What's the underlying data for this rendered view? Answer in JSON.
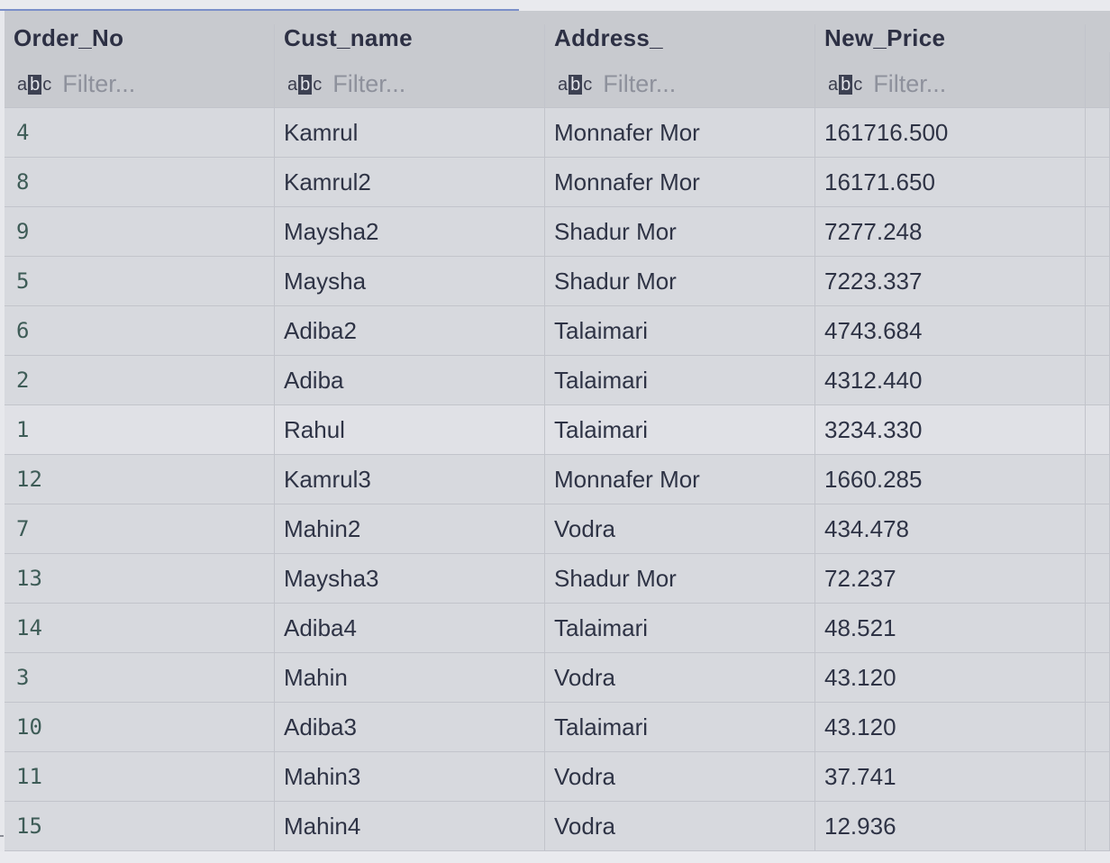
{
  "columns": [
    {
      "header": "Order_No",
      "filter_placeholder": "Filter..."
    },
    {
      "header": "Cust_name",
      "filter_placeholder": "Filter..."
    },
    {
      "header": "Address_",
      "filter_placeholder": "Filter..."
    },
    {
      "header": "New_Price",
      "filter_placeholder": "Filter..."
    }
  ],
  "filter_icon": "text-type-abc-icon",
  "selected_row_index": 6,
  "rows": [
    {
      "order_no": "4",
      "cust_name": "Kamrul",
      "address": "Monnafer Mor",
      "new_price": "161716.500"
    },
    {
      "order_no": "8",
      "cust_name": "Kamrul2",
      "address": "Monnafer Mor",
      "new_price": "16171.650"
    },
    {
      "order_no": "9",
      "cust_name": "Maysha2",
      "address": "Shadur Mor",
      "new_price": "7277.248"
    },
    {
      "order_no": "5",
      "cust_name": "Maysha",
      "address": "Shadur Mor",
      "new_price": "7223.337"
    },
    {
      "order_no": "6",
      "cust_name": "Adiba2",
      "address": "Talaimari",
      "new_price": "4743.684"
    },
    {
      "order_no": "2",
      "cust_name": "Adiba",
      "address": "Talaimari",
      "new_price": "4312.440"
    },
    {
      "order_no": "1",
      "cust_name": "Rahul",
      "address": "Talaimari",
      "new_price": "3234.330"
    },
    {
      "order_no": "12",
      "cust_name": "Kamrul3",
      "address": "Monnafer Mor",
      "new_price": "1660.285"
    },
    {
      "order_no": "7",
      "cust_name": "Mahin2",
      "address": "Vodra",
      "new_price": "434.478"
    },
    {
      "order_no": "13",
      "cust_name": "Maysha3",
      "address": "Shadur Mor",
      "new_price": "72.237"
    },
    {
      "order_no": "14",
      "cust_name": "Adiba4",
      "address": "Talaimari",
      "new_price": "48.521"
    },
    {
      "order_no": "3",
      "cust_name": "Mahin",
      "address": "Vodra",
      "new_price": "43.120"
    },
    {
      "order_no": "10",
      "cust_name": "Adiba3",
      "address": "Talaimari",
      "new_price": "43.120"
    },
    {
      "order_no": "11",
      "cust_name": "Mahin3",
      "address": "Vodra",
      "new_price": "37.741"
    },
    {
      "order_no": "15",
      "cust_name": "Mahin4",
      "address": "Vodra",
      "new_price": "12.936"
    }
  ]
}
